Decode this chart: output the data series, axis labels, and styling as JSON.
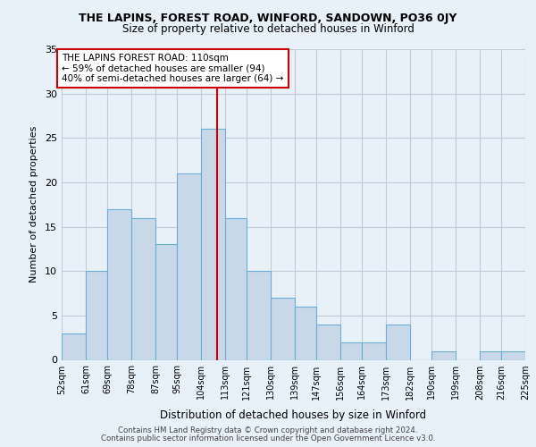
{
  "title": "THE LAPINS, FOREST ROAD, WINFORD, SANDOWN, PO36 0JY",
  "subtitle": "Size of property relative to detached houses in Winford",
  "xlabel": "Distribution of detached houses by size in Winford",
  "ylabel": "Number of detached properties",
  "bin_edges": [
    52,
    61,
    69,
    78,
    87,
    95,
    104,
    113,
    121,
    130,
    139,
    147,
    156,
    164,
    173,
    182,
    190,
    199,
    208,
    216,
    225
  ],
  "bin_labels": [
    "52sqm",
    "61sqm",
    "69sqm",
    "78sqm",
    "87sqm",
    "95sqm",
    "104sqm",
    "113sqm",
    "121sqm",
    "130sqm",
    "139sqm",
    "147sqm",
    "156sqm",
    "164sqm",
    "173sqm",
    "182sqm",
    "190sqm",
    "199sqm",
    "208sqm",
    "216sqm",
    "225sqm"
  ],
  "bin_values": [
    3,
    10,
    17,
    16,
    13,
    21,
    26,
    16,
    10,
    7,
    6,
    4,
    2,
    2,
    4,
    0,
    1,
    0,
    1,
    1
  ],
  "bar_color": "#c8d8e8",
  "bar_edge_color": "#6baed6",
  "vline_x": 110,
  "vline_color": "#cc0000",
  "annotation_title": "THE LAPINS FOREST ROAD: 110sqm",
  "annotation_line1": "← 59% of detached houses are smaller (94)",
  "annotation_line2": "40% of semi-detached houses are larger (64) →",
  "annotation_box_color": "#cc0000",
  "ylim": [
    0,
    35
  ],
  "yticks": [
    0,
    5,
    10,
    15,
    20,
    25,
    30,
    35
  ],
  "footer1": "Contains HM Land Registry data © Crown copyright and database right 2024.",
  "footer2": "Contains public sector information licensed under the Open Government Licence v3.0.",
  "background_color": "#e8f0f8",
  "plot_bg_color": "#e8f0f8",
  "grid_color": "#c0ccda"
}
